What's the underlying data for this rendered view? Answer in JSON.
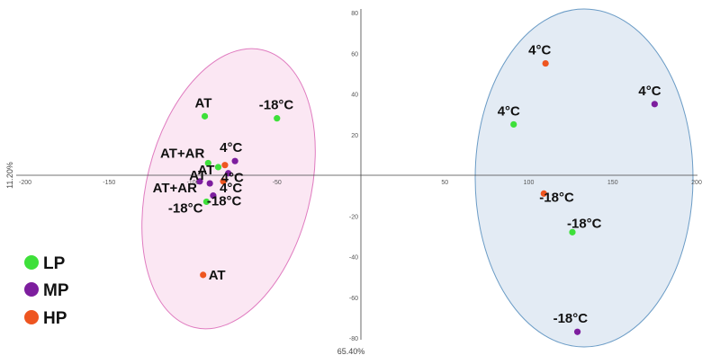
{
  "chart_data": {
    "type": "scatter",
    "x_axis_label": "65.40%",
    "y_axis_label": "11.20%",
    "xlim": [
      -200,
      200
    ],
    "ylim": [
      -80,
      80
    ],
    "x_ticks": [
      -200,
      -150,
      -100,
      -50,
      50,
      100,
      150,
      200
    ],
    "y_ticks": [
      80,
      60,
      40,
      20,
      -20,
      -40,
      -60,
      -80
    ],
    "legend_position": "bottom-left",
    "series": [
      {
        "name": "LP",
        "color": "#3ee03a"
      },
      {
        "name": "MP",
        "color": "#7d1e9e"
      },
      {
        "name": "HP",
        "color": "#ee5520"
      }
    ],
    "points": [
      {
        "series": "LP",
        "label": "AT",
        "x": -93,
        "y": 29
      },
      {
        "series": "LP",
        "label": "-18°C",
        "x": -50,
        "y": 28
      },
      {
        "series": "LP",
        "label": "AT+AR",
        "x": -91,
        "y": 6
      },
      {
        "series": "LP",
        "label": "AT",
        "x": -85,
        "y": 4
      },
      {
        "series": "MP",
        "label": "4°C",
        "x": -75,
        "y": 7
      },
      {
        "series": "HP",
        "label": "4°C",
        "x": -81,
        "y": 5
      },
      {
        "series": "MP",
        "label": "4°C",
        "x": -79,
        "y": 1
      },
      {
        "series": "HP",
        "label": "4°C",
        "x": -82,
        "y": -3
      },
      {
        "series": "MP",
        "label": "AT+AR",
        "x": -96,
        "y": -3
      },
      {
        "series": "MP",
        "label": "AT",
        "x": -90,
        "y": -4
      },
      {
        "series": "MP",
        "label": "-18°C",
        "x": -88,
        "y": -10
      },
      {
        "series": "LP",
        "label": "-18°C",
        "x": -92,
        "y": -13
      },
      {
        "series": "HP",
        "label": "AT",
        "x": -94,
        "y": -49
      },
      {
        "series": "HP",
        "label": "4°C",
        "x": 110,
        "y": 55
      },
      {
        "series": "LP",
        "label": "4°C",
        "x": 91,
        "y": 25
      },
      {
        "series": "MP",
        "label": "4°C",
        "x": 175,
        "y": 35
      },
      {
        "series": "HP",
        "label": "-18°C",
        "x": 109,
        "y": -9
      },
      {
        "series": "LP",
        "label": "-18°C",
        "x": 126,
        "y": -28
      },
      {
        "series": "MP",
        "label": "-18°C",
        "x": 129,
        "y": -77
      }
    ],
    "groups": [
      {
        "name": "left-cluster",
        "fill": "#fbe7f3",
        "stroke": "#e07cc0"
      },
      {
        "name": "right-cluster",
        "fill": "#e3ebf4",
        "stroke": "#6b9cc6"
      }
    ]
  }
}
